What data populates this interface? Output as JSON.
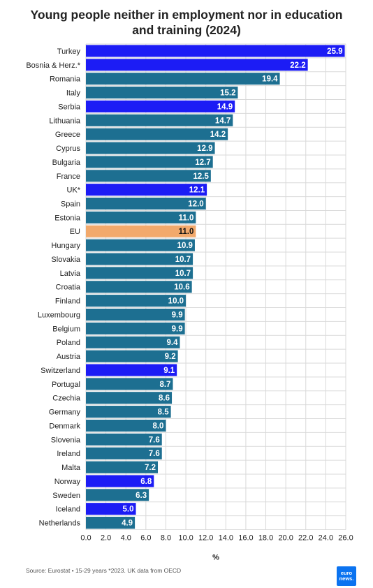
{
  "title_lines": [
    "Young people neither in employment nor in education",
    "and training (2024)"
  ],
  "source": "Source: Eurostat • 15-29 years *2023. UK data from OECD",
  "logo": {
    "line1": "euro",
    "line2": "news."
  },
  "colors": {
    "eu_member": "#1d6f91",
    "non_eu": "#1c1cf5",
    "eu_average": "#f2a96c",
    "grid": "#d9d9d9"
  },
  "chart_data": {
    "type": "bar",
    "orientation": "horizontal",
    "title": "Young people neither in employment nor in education and training (2024)",
    "xlabel": "%",
    "xlim": [
      0,
      26
    ],
    "xticks": [
      "0.0",
      "2.0",
      "4.0",
      "6.0",
      "8.0",
      "10.0",
      "12.0",
      "14.0",
      "16.0",
      "18.0",
      "20.0",
      "22.0",
      "24.0",
      "26.0"
    ],
    "grid": true,
    "categories": [
      "Turkey",
      "Bosnia & Herz.*",
      "Romania",
      "Italy",
      "Serbia",
      "Lithuania",
      "Greece",
      "Cyprus",
      "Bulgaria",
      "France",
      "UK*",
      "Spain",
      "Estonia",
      "EU",
      "Hungary",
      "Slovakia",
      "Latvia",
      "Croatia",
      "Finland",
      "Luxembourg",
      "Belgium",
      "Poland",
      "Austria",
      "Switzerland",
      "Portugal",
      "Czechia",
      "Germany",
      "Denmark",
      "Slovenia",
      "Ireland",
      "Malta",
      "Norway",
      "Sweden",
      "Iceland",
      "Netherlands"
    ],
    "values": [
      25.9,
      22.2,
      19.4,
      15.2,
      14.9,
      14.7,
      14.2,
      12.9,
      12.7,
      12.5,
      12.1,
      12.0,
      11.0,
      11.0,
      10.9,
      10.7,
      10.7,
      10.6,
      10.0,
      9.9,
      9.9,
      9.4,
      9.2,
      9.1,
      8.7,
      8.6,
      8.5,
      8.0,
      7.6,
      7.6,
      7.2,
      6.8,
      6.3,
      5.0,
      4.9
    ],
    "value_labels": [
      "25.9",
      "22.2",
      "19.4",
      "15.2",
      "14.9",
      "14.7",
      "14.2",
      "12.9",
      "12.7",
      "12.5",
      "12.1",
      "12.0",
      "11.0",
      "11.0",
      "10.9",
      "10.7",
      "10.7",
      "10.6",
      "10.0",
      "9.9",
      "9.9",
      "9.4",
      "9.2",
      "9.1",
      "8.7",
      "8.6",
      "8.5",
      "8.0",
      "7.6",
      "7.6",
      "7.2",
      "6.8",
      "6.3",
      "5.0",
      "4.9"
    ],
    "groups": [
      "non_eu",
      "non_eu",
      "eu_member",
      "eu_member",
      "non_eu",
      "eu_member",
      "eu_member",
      "eu_member",
      "eu_member",
      "eu_member",
      "non_eu",
      "eu_member",
      "eu_member",
      "eu_average",
      "eu_member",
      "eu_member",
      "eu_member",
      "eu_member",
      "eu_member",
      "eu_member",
      "eu_member",
      "eu_member",
      "eu_member",
      "non_eu",
      "eu_member",
      "eu_member",
      "eu_member",
      "eu_member",
      "eu_member",
      "eu_member",
      "eu_member",
      "non_eu",
      "eu_member",
      "non_eu",
      "eu_member"
    ]
  }
}
